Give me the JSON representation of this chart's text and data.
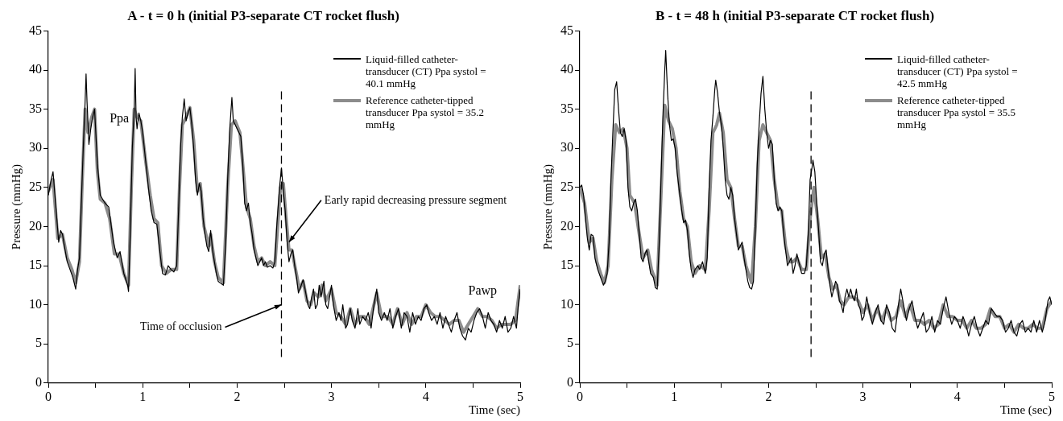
{
  "chart_data": [
    {
      "type": "line",
      "title": "A - t = 0 h (initial P3-separate CT rocket flush)",
      "xlabel": "Time (sec)",
      "ylabel": "Pressure (mmHg)",
      "xlim": [
        0,
        5
      ],
      "xticks": [
        0,
        {
          "value": 0.5,
          "label": null
        },
        1,
        {
          "value": 1.5,
          "label": null
        },
        2,
        {
          "value": 2.5,
          "label": null
        },
        3,
        {
          "value": 3.5,
          "label": null
        },
        4,
        {
          "value": 4.5,
          "label": null
        },
        5
      ],
      "ylim": [
        0,
        45
      ],
      "yticks": [
        0,
        5,
        10,
        15,
        20,
        25,
        30,
        35,
        40,
        45
      ],
      "grid": false,
      "legend": "top right",
      "marker": "none",
      "line_style": "solid",
      "ref_lines": [
        {
          "axis": "x",
          "value": 2.47,
          "line_style": "dashed",
          "color": "#000000"
        }
      ],
      "annotations": [
        "Ppa",
        "Pawp",
        {
          "text": "Early rapid decreasing pressure segment",
          "x": 2.55,
          "y": 18
        },
        {
          "text": "Time of occlusion",
          "x": 2.47,
          "y": 10
        }
      ],
      "series": [
        {
          "name": "Liquid-filled catheter-transducer (CT) Ppa systol = 40.1 mmHg",
          "color": "#000000",
          "x": [
            0,
            0.03,
            0.05,
            0.07,
            0.09,
            0.11,
            0.13,
            0.15,
            0.17,
            0.2,
            0.23,
            0.26,
            0.29,
            0.31,
            0.33,
            0.35,
            0.37,
            0.39,
            0.4,
            0.41,
            0.43,
            0.45,
            0.47,
            0.49,
            0.52,
            0.55,
            0.6,
            0.64,
            0.69,
            0.73,
            0.76,
            0.8,
            0.84,
            0.85,
            0.87,
            0.89,
            0.91,
            0.92,
            0.93,
            0.94,
            0.96,
            0.98,
            1,
            1.03,
            1.06,
            1.09,
            1.12,
            1.15,
            1.18,
            1.21,
            1.24,
            1.27,
            1.3,
            1.33,
            1.36,
            1.38,
            1.4,
            1.42,
            1.44,
            1.46,
            1.48,
            1.5,
            1.52,
            1.54,
            1.56,
            1.58,
            1.6,
            1.62,
            1.64,
            1.66,
            1.68,
            1.7,
            1.72,
            1.74,
            1.76,
            1.78,
            1.8,
            1.82,
            1.855,
            1.88,
            1.9,
            1.92,
            1.945,
            1.96,
            1.98,
            2,
            2.02,
            2.04,
            2.06,
            2.08,
            2.1,
            2.12,
            2.14,
            2.16,
            2.18,
            2.2,
            2.22,
            2.24,
            2.26,
            2.28,
            2.3,
            2.32,
            2.35,
            2.38,
            2.4,
            2.42,
            2.45,
            2.47,
            2.49,
            2.51,
            2.53,
            2.55,
            2.57,
            2.59,
            2.61,
            2.63,
            2.65,
            2.68,
            2.7,
            2.72,
            2.75,
            2.77,
            2.79,
            2.81,
            2.83,
            2.85,
            2.87,
            2.89,
            2.92,
            2.94,
            2.96,
            2.98,
            3,
            3.02,
            3.05,
            3.08,
            3.1,
            3.12,
            3.15,
            3.17,
            3.2,
            3.22,
            3.25,
            3.28,
            3.3,
            3.33,
            3.36,
            3.39,
            3.42,
            3.45,
            3.48,
            3.5,
            3.53,
            3.56,
            3.59,
            3.62,
            3.65,
            3.68,
            3.71,
            3.74,
            3.77,
            3.8,
            3.83,
            3.86,
            3.89,
            3.92,
            3.95,
            3.98,
            4.01,
            4.03,
            4.06,
            4.09,
            4.12,
            4.15,
            4.18,
            4.21,
            4.24,
            4.27,
            4.3,
            4.33,
            4.36,
            4.39,
            4.42,
            4.45,
            4.48,
            4.51,
            4.54,
            4.57,
            4.6,
            4.63,
            4.66,
            4.69,
            4.72,
            4.75,
            4.78,
            4.81,
            4.84,
            4.87,
            4.9,
            4.93,
            4.96,
            4.98,
            5
          ],
          "values": [
            24,
            26,
            27,
            24,
            21,
            18,
            19.5,
            19,
            17.5,
            15.5,
            14.5,
            13.5,
            12,
            14.5,
            16,
            23,
            30,
            36,
            39.5,
            36,
            30.5,
            32.5,
            34,
            35,
            28,
            24,
            23,
            22.5,
            18,
            16,
            16.8,
            14,
            12.5,
            11.7,
            20,
            30,
            35,
            40.2,
            34,
            32.5,
            34.5,
            33.5,
            32,
            28.5,
            25,
            22,
            20.5,
            20.3,
            17,
            14,
            13.8,
            15,
            14.5,
            14.2,
            15,
            22,
            30,
            34,
            36.3,
            33.5,
            34.5,
            35.2,
            33,
            30,
            26,
            24,
            25.5,
            24.5,
            21,
            19,
            17.5,
            16.8,
            19.5,
            17,
            15.5,
            14,
            13,
            12.8,
            12.5,
            18,
            26,
            32,
            36.5,
            33.5,
            33,
            32.5,
            32,
            31.5,
            28,
            23,
            22,
            23,
            20.5,
            19,
            17,
            16,
            15,
            15.5,
            16,
            15,
            15.5,
            14.8,
            15,
            14.7,
            15.5,
            20,
            25,
            27.5,
            24.5,
            22,
            18,
            15.5,
            16.5,
            17,
            15,
            13.5,
            11.5,
            12.5,
            13.2,
            12,
            10,
            9.5,
            11,
            12,
            9.5,
            10,
            12.5,
            11,
            13,
            10,
            9.5,
            11,
            12.5,
            10,
            8,
            9,
            8,
            10,
            7,
            7.5,
            9.5,
            8,
            7,
            9.5,
            7.5,
            8.5,
            8,
            9,
            7,
            10,
            12,
            9,
            8,
            9,
            8,
            9.5,
            7,
            8.5,
            9.5,
            7,
            9,
            8.5,
            6.5,
            9,
            7.5,
            8.5,
            8,
            9.5,
            10,
            9,
            8,
            8.5,
            7.5,
            9,
            7,
            8.5,
            7.5,
            6.5,
            8,
            9,
            7,
            6,
            5.5,
            7,
            6.5,
            8,
            9,
            9.5,
            8.5,
            7,
            9,
            8,
            7.5,
            6.5,
            8,
            7,
            8.5,
            6.5,
            7,
            8.5,
            7,
            10,
            12
          ]
        },
        {
          "name": "Reference catheter-tipped transducer Ppa systol = 35.2 mmHg",
          "color": "#8c8c8c",
          "x": [
            0,
            0.05,
            0.1,
            0.15,
            0.2,
            0.25,
            0.29,
            0.33,
            0.36,
            0.39,
            0.42,
            0.46,
            0.49,
            0.52,
            0.55,
            0.6,
            0.65,
            0.7,
            0.75,
            0.8,
            0.85,
            0.88,
            0.91,
            0.94,
            0.98,
            1.03,
            1.08,
            1.12,
            1.16,
            1.2,
            1.25,
            1.3,
            1.36,
            1.39,
            1.42,
            1.46,
            1.5,
            1.54,
            1.58,
            1.61,
            1.65,
            1.7,
            1.72,
            1.76,
            1.8,
            1.855,
            1.9,
            1.94,
            1.98,
            2.03,
            2.06,
            2.1,
            2.14,
            2.18,
            2.22,
            2.26,
            2.3,
            2.35,
            2.4,
            2.43,
            2.46,
            2.49,
            2.52,
            2.55,
            2.58,
            2.62,
            2.66,
            2.7,
            2.74,
            2.78,
            2.82,
            2.86,
            2.9,
            2.94,
            3,
            3.05,
            3.1,
            3.15,
            3.2,
            3.25,
            3.3,
            3.35,
            3.4,
            3.45,
            3.48,
            3.53,
            3.6,
            3.65,
            3.7,
            3.75,
            3.8,
            3.85,
            3.9,
            3.95,
            4,
            4.05,
            4.1,
            4.15,
            4.2,
            4.25,
            4.3,
            4.35,
            4.4,
            4.45,
            4.5,
            4.55,
            4.6,
            4.65,
            4.7,
            4.75,
            4.8,
            4.85,
            4.9,
            4.95,
            5
          ],
          "values": [
            24.5,
            26,
            18.5,
            19,
            16,
            14.5,
            12.8,
            15.5,
            26,
            35,
            32,
            34,
            35,
            27,
            23.5,
            23,
            21,
            16.5,
            16.5,
            14,
            12.5,
            25,
            35,
            34,
            33.5,
            28.5,
            24,
            21,
            20.5,
            15,
            14,
            14.5,
            14.5,
            25,
            33,
            34,
            35.2,
            31,
            24.5,
            25.5,
            20,
            17.5,
            19,
            15.5,
            13.5,
            12.8,
            25,
            33,
            33.5,
            32,
            28,
            22.5,
            21,
            17.5,
            15.5,
            16,
            15,
            15.5,
            15,
            20,
            25,
            25.5,
            21,
            17,
            17,
            14.5,
            12,
            13,
            10.5,
            10,
            11.5,
            11,
            12.5,
            10.5,
            12,
            9,
            8.5,
            7.5,
            9.5,
            7.5,
            8.5,
            8.5,
            7.5,
            10,
            11.5,
            8.5,
            8.5,
            7.5,
            9.5,
            7.5,
            9,
            7.5,
            8.5,
            8.5,
            10,
            9,
            8.5,
            8.5,
            8,
            7.5,
            8,
            8,
            6.5,
            7.5,
            8.5,
            9.5,
            8.5,
            8.5,
            8,
            7,
            7.5,
            7.5,
            7.5,
            8,
            12.5
          ]
        }
      ]
    },
    {
      "type": "line",
      "title": "B - t = 48 h (initial P3-separate CT rocket flush)",
      "xlabel": "Time (sec)",
      "ylabel": "Pressure (mmHg)",
      "xlim": [
        0,
        5
      ],
      "xticks": [
        0,
        {
          "value": 0.5,
          "label": null
        },
        1,
        {
          "value": 1.5,
          "label": null
        },
        2,
        {
          "value": 2.5,
          "label": null
        },
        3,
        {
          "value": 3.5,
          "label": null
        },
        4,
        {
          "value": 4.5,
          "label": null
        },
        5
      ],
      "ylim": [
        0,
        45
      ],
      "yticks": [
        0,
        5,
        10,
        15,
        20,
        25,
        30,
        35,
        40,
        45
      ],
      "grid": false,
      "legend": "top right",
      "marker": "none",
      "line_style": "solid",
      "ref_lines": [
        {
          "axis": "x",
          "value": 2.45,
          "line_style": "dashed",
          "color": "#000000"
        }
      ],
      "series": [
        {
          "name": "Liquid-filled catheter-transducer (CT) Ppa systol = 42.5 mmHg",
          "color": "#000000",
          "x": [
            0,
            0.02,
            0.04,
            0.06,
            0.08,
            0.1,
            0.12,
            0.14,
            0.16,
            0.19,
            0.22,
            0.25,
            0.27,
            0.29,
            0.31,
            0.33,
            0.35,
            0.37,
            0.39,
            0.41,
            0.43,
            0.45,
            0.47,
            0.49,
            0.51,
            0.53,
            0.55,
            0.57,
            0.59,
            0.61,
            0.63,
            0.65,
            0.67,
            0.69,
            0.71,
            0.73,
            0.75,
            0.78,
            0.8,
            0.82,
            0.84,
            0.86,
            0.88,
            0.9,
            0.91,
            0.93,
            0.95,
            0.97,
            0.99,
            1.01,
            1.03,
            1.06,
            1.08,
            1.1,
            1.12,
            1.14,
            1.16,
            1.18,
            1.2,
            1.22,
            1.25,
            1.27,
            1.3,
            1.33,
            1.35,
            1.37,
            1.39,
            1.41,
            1.43,
            1.44,
            1.46,
            1.48,
            1.5,
            1.52,
            1.54,
            1.56,
            1.58,
            1.6,
            1.62,
            1.64,
            1.66,
            1.68,
            1.7,
            1.72,
            1.74,
            1.76,
            1.78,
            1.8,
            1.82,
            1.84,
            1.86,
            1.88,
            1.9,
            1.92,
            1.94,
            1.96,
            1.98,
            2,
            2.02,
            2.04,
            2.06,
            2.08,
            2.1,
            2.12,
            2.14,
            2.16,
            2.18,
            2.2,
            2.22,
            2.24,
            2.26,
            2.28,
            2.3,
            2.32,
            2.35,
            2.38,
            2.4,
            2.42,
            2.44,
            2.46,
            2.47,
            2.49,
            2.51,
            2.53,
            2.55,
            2.57,
            2.59,
            2.61,
            2.63,
            2.65,
            2.67,
            2.69,
            2.71,
            2.73,
            2.75,
            2.77,
            2.79,
            2.81,
            2.83,
            2.85,
            2.87,
            2.89,
            2.91,
            2.93,
            2.95,
            2.97,
            2.99,
            3.01,
            3.04,
            3.07,
            3.1,
            3.13,
            3.16,
            3.19,
            3.22,
            3.25,
            3.28,
            3.31,
            3.34,
            3.37,
            3.4,
            3.43,
            3.46,
            3.49,
            3.52,
            3.55,
            3.58,
            3.61,
            3.64,
            3.67,
            3.7,
            3.73,
            3.76,
            3.79,
            3.82,
            3.85,
            3.88,
            3.91,
            3.94,
            3.97,
            4,
            4.03,
            4.06,
            4.09,
            4.12,
            4.15,
            4.18,
            4.21,
            4.24,
            4.27,
            4.3,
            4.33,
            4.36,
            4.39,
            4.42,
            4.45,
            4.48,
            4.51,
            4.54,
            4.57,
            4.6,
            4.63,
            4.66,
            4.69,
            4.72,
            4.75,
            4.78,
            4.81,
            4.84,
            4.87,
            4.9,
            4.93,
            4.96,
            4.98,
            5
          ],
          "values": [
            25,
            25.3,
            24,
            21,
            18.5,
            17,
            19,
            18.8,
            16,
            14.5,
            13.5,
            12.5,
            13,
            14,
            18,
            26,
            32,
            37.5,
            38.5,
            35,
            32,
            31.5,
            32.5,
            31,
            25,
            22.5,
            22,
            23,
            23.5,
            22,
            19,
            16,
            15.5,
            16.5,
            17,
            15.5,
            14,
            13.5,
            12.2,
            12,
            17.5,
            26,
            34,
            40,
            42.5,
            37,
            33,
            31,
            31.2,
            30,
            27,
            24,
            22,
            20.5,
            20.8,
            19.5,
            16.5,
            14.5,
            13.5,
            14.5,
            15,
            14.5,
            15.5,
            14,
            16,
            25,
            31,
            34,
            37.5,
            38.7,
            37,
            34.5,
            33,
            30,
            26,
            24,
            23.5,
            25,
            24,
            21,
            19,
            17,
            17.5,
            18,
            16,
            14.5,
            13,
            12.2,
            12,
            13,
            20,
            28,
            33,
            37,
            39.2,
            35,
            32,
            30,
            31,
            30.5,
            26,
            23,
            22,
            22.5,
            22,
            19,
            17,
            15,
            15.5,
            16,
            14,
            15,
            16.5,
            15.5,
            14,
            14,
            15,
            19,
            26,
            27.5,
            28.5,
            27,
            23,
            19.5,
            15.5,
            15,
            16.5,
            17,
            14.5,
            12.5,
            11,
            12,
            13,
            12.5,
            10.5,
            10,
            9,
            11,
            12,
            11,
            12,
            11,
            10.5,
            12,
            10,
            9.5,
            8,
            8.5,
            11,
            9,
            7.5,
            9,
            10,
            8,
            7.5,
            10,
            9,
            7,
            6.5,
            9.5,
            12,
            10,
            8,
            9.5,
            10.5,
            8.5,
            7,
            8,
            9,
            6.5,
            7,
            8.5,
            6.5,
            8,
            7.5,
            9.5,
            11,
            9,
            7.5,
            8.5,
            8,
            7,
            8.5,
            7.5,
            6,
            7.5,
            8.5,
            7,
            6,
            7,
            8,
            7.5,
            9.5,
            9,
            8.5,
            8.5,
            8,
            6.5,
            7,
            8,
            6.5,
            6,
            7.5,
            8,
            6.5,
            7,
            6.5,
            8,
            6.5,
            8,
            6.5,
            8,
            10.5,
            11,
            10
          ]
        },
        {
          "name": "Reference catheter-tipped transducer Ppa systol = 35.5 mmHg",
          "color": "#8c8c8c",
          "x": [
            0,
            0.05,
            0.1,
            0.14,
            0.18,
            0.22,
            0.26,
            0.3,
            0.34,
            0.38,
            0.42,
            0.46,
            0.5,
            0.53,
            0.58,
            0.63,
            0.67,
            0.72,
            0.76,
            0.82,
            0.86,
            0.9,
            0.94,
            0.98,
            1.02,
            1.06,
            1.1,
            1.14,
            1.18,
            1.22,
            1.27,
            1.33,
            1.37,
            1.41,
            1.45,
            1.48,
            1.52,
            1.56,
            1.6,
            1.64,
            1.68,
            1.72,
            1.76,
            1.82,
            1.86,
            1.9,
            1.94,
            1.98,
            2.02,
            2.06,
            2.1,
            2.14,
            2.18,
            2.22,
            2.26,
            2.3,
            2.35,
            2.4,
            2.44,
            2.48,
            2.52,
            2.56,
            2.6,
            2.64,
            2.68,
            2.72,
            2.76,
            2.8,
            2.85,
            2.9,
            2.95,
            3,
            3.05,
            3.1,
            3.15,
            3.2,
            3.25,
            3.3,
            3.35,
            3.4,
            3.45,
            3.5,
            3.55,
            3.6,
            3.65,
            3.7,
            3.75,
            3.8,
            3.85,
            3.9,
            3.95,
            4,
            4.05,
            4.1,
            4.15,
            4.2,
            4.25,
            4.3,
            4.35,
            4.4,
            4.45,
            4.5,
            4.55,
            4.6,
            4.65,
            4.7,
            4.75,
            4.8,
            4.85,
            4.9,
            4.95,
            5
          ],
          "values": [
            25,
            23,
            18,
            18.5,
            15.5,
            14,
            12.8,
            15,
            26,
            33,
            32,
            32.5,
            30,
            24,
            23,
            19,
            16,
            17,
            14.5,
            12.5,
            24,
            35.5,
            33.5,
            32.5,
            30,
            24.5,
            21,
            20,
            15.5,
            14,
            15,
            14.5,
            22,
            32,
            33,
            34.5,
            32,
            26,
            25,
            21,
            17.5,
            17.5,
            15,
            12.8,
            20,
            31,
            33,
            32,
            31,
            26,
            22.5,
            22,
            17.5,
            15.5,
            15.5,
            16,
            14.5,
            14.5,
            21,
            25,
            21,
            16,
            16.5,
            13.5,
            12,
            12.5,
            10.5,
            10,
            11,
            11,
            10.5,
            9,
            10,
            8,
            9.5,
            8,
            9.5,
            8,
            8.5,
            10.5,
            8.5,
            10,
            8,
            8,
            7.5,
            8,
            7,
            7.5,
            10,
            8.5,
            8.5,
            8,
            8,
            7,
            8,
            7,
            7,
            7.5,
            9.5,
            8.5,
            8.5,
            7,
            7.5,
            6.5,
            7.5,
            7,
            7,
            7.5,
            7,
            7,
            9.5,
            10.5
          ]
        }
      ]
    }
  ]
}
